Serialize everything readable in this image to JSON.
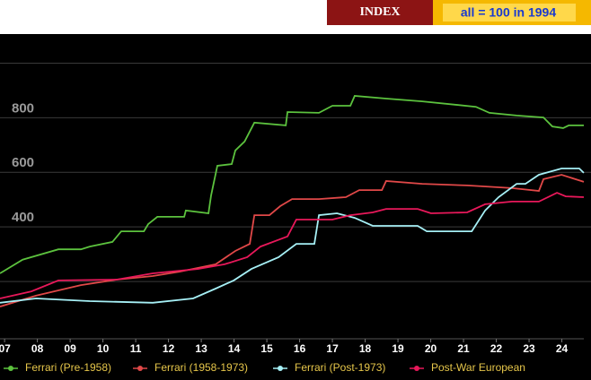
{
  "header": {
    "button": "INDEX",
    "note": "all = 100 in 1994"
  },
  "chart_data": {
    "type": "line",
    "xlim": [
      2006.86,
      2024.67
    ],
    "ylim": [
      0,
      1100
    ],
    "xticks": [
      {
        "value": 2007,
        "label": "07"
      },
      {
        "value": 2008,
        "label": "08"
      },
      {
        "value": 2009,
        "label": "09"
      },
      {
        "value": 2010,
        "label": "10"
      },
      {
        "value": 2011,
        "label": "11"
      },
      {
        "value": 2012,
        "label": "12"
      },
      {
        "value": 2013,
        "label": "13"
      },
      {
        "value": 2014,
        "label": "14"
      },
      {
        "value": 2015,
        "label": "15"
      },
      {
        "value": 2016,
        "label": "16"
      },
      {
        "value": 2017,
        "label": "17"
      },
      {
        "value": 2018,
        "label": "18"
      },
      {
        "value": 2019,
        "label": "19"
      },
      {
        "value": 2020,
        "label": "20"
      },
      {
        "value": 2021,
        "label": "21"
      },
      {
        "value": 2022,
        "label": "22"
      },
      {
        "value": 2023,
        "label": "23"
      },
      {
        "value": 2024,
        "label": "24"
      }
    ],
    "yticks": [
      {
        "value": 200,
        "label": null
      },
      400,
      600,
      800,
      {
        "value": 1000,
        "label": null
      }
    ],
    "grid": true,
    "series": [
      {
        "name": "Ferrari (Pre-1958)",
        "color": "#5cc23e",
        "x": [
          2006.86,
          2007.55,
          2008.64,
          2009.33,
          2009.6,
          2010.29,
          2010.56,
          2011.25,
          2011.38,
          2011.66,
          2012.48,
          2012.53,
          2013.22,
          2013.3,
          2013.49,
          2013.93,
          2014.04,
          2014.32,
          2014.62,
          2015.58,
          2015.63,
          2016.59,
          2017.0,
          2017.55,
          2017.68,
          2018.64,
          2019.74,
          2021.38,
          2021.79,
          2022.62,
          2023.44,
          2023.71,
          2024.04,
          2024.21,
          2024.67
        ],
        "values": [
          230,
          280,
          318,
          318,
          328,
          345,
          384,
          384,
          410,
          437,
          437,
          460,
          450,
          515,
          624,
          630,
          680,
          713,
          782,
          772,
          821,
          818,
          844,
          844,
          880,
          870,
          860,
          840,
          818,
          808,
          801,
          768,
          762,
          772,
          772
        ]
      },
      {
        "name": "Ferrari (1958-1973)",
        "color": "#e04848",
        "x": [
          2006.86,
          2007.96,
          2009.33,
          2010.42,
          2011.52,
          2012.34,
          2013.44,
          2014.04,
          2014.48,
          2014.62,
          2015.08,
          2015.41,
          2015.77,
          2016.59,
          2017.41,
          2017.82,
          2018.51,
          2018.64,
          2019.74,
          2021.11,
          2022.48,
          2023.3,
          2023.44,
          2023.99,
          2024.67
        ],
        "values": [
          108,
          148,
          187,
          207,
          220,
          236,
          263,
          312,
          338,
          443,
          443,
          476,
          502,
          502,
          509,
          535,
          535,
          568,
          558,
          552,
          542,
          532,
          575,
          591,
          565
        ]
      },
      {
        "name": "Ferrari (Post-1973)",
        "color": "#a6f0f6",
        "x": [
          2006.86,
          2007.96,
          2009.6,
          2011.52,
          2012.75,
          2013.44,
          2013.99,
          2014.53,
          2015.36,
          2015.9,
          2016.45,
          2016.59,
          2017.14,
          2017.68,
          2018.23,
          2019.6,
          2019.88,
          2021.25,
          2021.66,
          2022.07,
          2022.62,
          2022.89,
          2023.3,
          2023.99,
          2024.53,
          2024.67
        ],
        "values": [
          122,
          138,
          128,
          122,
          138,
          174,
          204,
          246,
          289,
          338,
          338,
          443,
          450,
          433,
          404,
          404,
          384,
          384,
          460,
          509,
          558,
          558,
          591,
          614,
          614,
          598
        ]
      },
      {
        "name": "Post-War European",
        "color": "#e8185a",
        "x": [
          2006.86,
          2007.82,
          2008.64,
          2010.42,
          2011.52,
          2012.89,
          2013.71,
          2014.4,
          2014.81,
          2015.63,
          2015.9,
          2017.0,
          2017.55,
          2018.23,
          2018.64,
          2019.6,
          2020.01,
          2021.11,
          2021.66,
          2022.48,
          2023.3,
          2023.85,
          2024.12,
          2024.67
        ],
        "values": [
          138,
          164,
          204,
          207,
          230,
          246,
          263,
          289,
          328,
          365,
          427,
          427,
          443,
          453,
          466,
          466,
          450,
          453,
          483,
          493,
          493,
          525,
          512,
          509
        ]
      }
    ]
  }
}
